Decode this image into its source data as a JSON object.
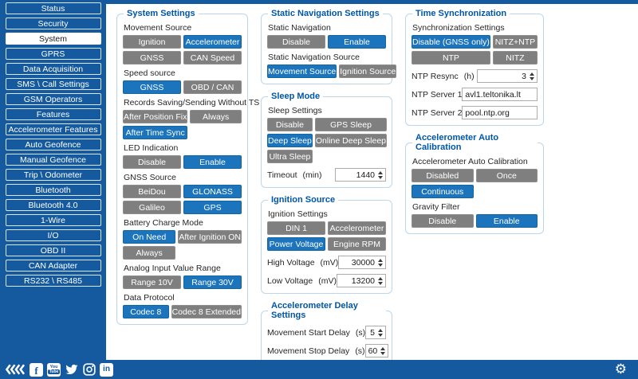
{
  "colors": {
    "sidebar_blue": "#155A9E",
    "selected_button_blue": "#1B74BC",
    "unselected_button_gray": "#7F7F7F",
    "panel_border_blue": "#BCD6EC",
    "panel_title_blue": "#0056A6"
  },
  "sidebar": {
    "items": [
      {
        "label": "Status",
        "selected": false
      },
      {
        "label": "Security",
        "selected": false
      },
      {
        "label": "System",
        "selected": true
      },
      {
        "label": "GPRS",
        "selected": false
      },
      {
        "label": "Data Acquisition",
        "selected": false
      },
      {
        "label": "SMS \\ Call Settings",
        "selected": false
      },
      {
        "label": "GSM Operators",
        "selected": false
      },
      {
        "label": "Features",
        "selected": false
      },
      {
        "label": "Accelerometer Features",
        "selected": false
      },
      {
        "label": "Auto Geofence",
        "selected": false
      },
      {
        "label": "Manual Geofence",
        "selected": false
      },
      {
        "label": "Trip \\ Odometer",
        "selected": false
      },
      {
        "label": "Bluetooth",
        "selected": false
      },
      {
        "label": "Bluetooth 4.0",
        "selected": false
      },
      {
        "label": "1-Wire",
        "selected": false
      },
      {
        "label": "I/O",
        "selected": false
      },
      {
        "label": "OBD II",
        "selected": false
      },
      {
        "label": "CAN Adapter",
        "selected": false
      },
      {
        "label": "RS232 \\ RS485",
        "selected": false
      }
    ]
  },
  "columns": [
    {
      "panels": [
        {
          "id": "system-settings",
          "title": "System Settings",
          "rows": [
            {
              "type": "label",
              "text": "Movement Source"
            },
            {
              "type": "options",
              "buttons": [
                {
                  "label": "Ignition",
                  "selected": false
                },
                {
                  "label": "Accelerometer",
                  "selected": true
                },
                {
                  "label": "GNSS",
                  "selected": false
                },
                {
                  "label": "CAN Speed",
                  "selected": false
                }
              ]
            },
            {
              "type": "label",
              "text": "Speed source"
            },
            {
              "type": "options",
              "buttons": [
                {
                  "label": "GNSS",
                  "selected": true
                },
                {
                  "label": "OBD / CAN",
                  "selected": false
                }
              ]
            },
            {
              "type": "label",
              "text": "Records Saving/Sending Without TS"
            },
            {
              "type": "options",
              "buttons": [
                {
                  "label": "After Position Fix",
                  "selected": false
                },
                {
                  "label": "Always",
                  "selected": false
                },
                {
                  "label": "After Time Sync",
                  "selected": true
                }
              ]
            },
            {
              "type": "label",
              "text": "LED Indication"
            },
            {
              "type": "options",
              "buttons": [
                {
                  "label": "Disable",
                  "selected": false
                },
                {
                  "label": "Enable",
                  "selected": true
                }
              ]
            },
            {
              "type": "label",
              "text": "GNSS Source"
            },
            {
              "type": "options",
              "buttons": [
                {
                  "label": "BeiDou",
                  "selected": false
                },
                {
                  "label": "GLONASS",
                  "selected": true
                },
                {
                  "label": "Galileo",
                  "selected": false
                },
                {
                  "label": "GPS",
                  "selected": true
                }
              ]
            },
            {
              "type": "label",
              "text": "Battery Charge Mode"
            },
            {
              "type": "options",
              "buttons": [
                {
                  "label": "On Need",
                  "selected": true
                },
                {
                  "label": "After Ignition ON",
                  "selected": false
                },
                {
                  "label": "Always",
                  "selected": false
                }
              ]
            },
            {
              "type": "label",
              "text": "Analog Input Value Range"
            },
            {
              "type": "options",
              "buttons": [
                {
                  "label": "Range 10V",
                  "selected": false
                },
                {
                  "label": "Range 30V",
                  "selected": true
                }
              ]
            },
            {
              "type": "label",
              "text": "Data Protocol"
            },
            {
              "type": "options",
              "buttons": [
                {
                  "label": "Codec 8",
                  "selected": true
                },
                {
                  "label": "Codec 8 Extended",
                  "selected": false
                }
              ]
            }
          ]
        }
      ]
    },
    {
      "panels": [
        {
          "id": "static-navigation-settings",
          "title": "Static Navigation Settings",
          "rows": [
            {
              "type": "label",
              "text": "Static Navigation"
            },
            {
              "type": "options",
              "buttons": [
                {
                  "label": "Disable",
                  "selected": false
                },
                {
                  "label": "Enable",
                  "selected": true
                }
              ]
            },
            {
              "type": "label",
              "text": "Static Navigation Source"
            },
            {
              "type": "options",
              "buttons": [
                {
                  "label": "Movement Source",
                  "selected": true
                },
                {
                  "label": "Ignition Source",
                  "selected": false
                }
              ]
            }
          ]
        },
        {
          "id": "sleep-mode",
          "title": "Sleep Mode",
          "rows": [
            {
              "type": "label",
              "text": "Sleep Settings"
            },
            {
              "type": "options",
              "buttons": [
                {
                  "label": "Disable",
                  "selected": false
                },
                {
                  "label": "GPS Sleep",
                  "selected": false
                },
                {
                  "label": "Deep Sleep",
                  "selected": true
                },
                {
                  "label": "Online Deep Sleep",
                  "selected": false
                },
                {
                  "label": "Ultra Sleep",
                  "selected": false
                }
              ]
            },
            {
              "type": "spinner",
              "label": "Timeout",
              "unit": "(min)",
              "value": "1440"
            }
          ]
        },
        {
          "id": "ignition-source",
          "title": "Ignition Source",
          "rows": [
            {
              "type": "label",
              "text": "Ignition Settings"
            },
            {
              "type": "options",
              "buttons": [
                {
                  "label": "DIN 1",
                  "selected": false
                },
                {
                  "label": "Accelerometer",
                  "selected": false
                },
                {
                  "label": "Power Voltage",
                  "selected": true
                },
                {
                  "label": "Engine RPM",
                  "selected": false
                }
              ]
            },
            {
              "type": "spinner",
              "label": "High Voltage",
              "unit": "(mV)",
              "value": "30000"
            },
            {
              "type": "spinner",
              "label": "Low Voltage",
              "unit": "(mV)",
              "value": "13200"
            }
          ]
        },
        {
          "id": "accelerometer-delay-settings",
          "title": "Accelerometer Delay Settings",
          "rows": [
            {
              "type": "spinner",
              "label": "Movement Start Delay",
              "unit": "(s)",
              "value": "5"
            },
            {
              "type": "spinner",
              "label": "Movement Stop Delay",
              "unit": "(s)",
              "value": "60"
            }
          ]
        }
      ]
    },
    {
      "panels": [
        {
          "id": "time-synchronization",
          "title": "Time Synchronization",
          "rows": [
            {
              "type": "label",
              "text": "Synchronization Settings"
            },
            {
              "type": "options",
              "buttons": [
                {
                  "label": "Disable (GNSS only)",
                  "selected": true
                },
                {
                  "label": "NITZ+NTP",
                  "selected": false
                },
                {
                  "label": "NTP",
                  "selected": false
                },
                {
                  "label": "NITZ",
                  "selected": false
                }
              ]
            },
            {
              "type": "spinner",
              "label": "NTP Resync",
              "unit": "(h)",
              "value": "3"
            },
            {
              "type": "text",
              "label": "NTP Server 1",
              "value": "avl1.teltonika.lt"
            },
            {
              "type": "text",
              "label": "NTP Server 2",
              "value": "pool.ntp.org"
            }
          ]
        },
        {
          "id": "accelerometer-auto-calibration",
          "title": "Accelerometer Auto Calibration",
          "rows": [
            {
              "type": "label",
              "text": "Accelerometer Auto Calibration"
            },
            {
              "type": "options",
              "buttons": [
                {
                  "label": "Disabled",
                  "selected": false
                },
                {
                  "label": "Once",
                  "selected": false
                },
                {
                  "label": "Continuous",
                  "selected": true
                }
              ]
            },
            {
              "type": "label",
              "text": "Gravity Filter"
            },
            {
              "type": "options",
              "buttons": [
                {
                  "label": "Disable",
                  "selected": false
                },
                {
                  "label": "Enable",
                  "selected": true
                }
              ]
            }
          ]
        }
      ]
    }
  ],
  "footer": {
    "icons": [
      {
        "name": "teltonika-logo-icon"
      },
      {
        "name": "facebook-icon",
        "glyph": "f"
      },
      {
        "name": "youtube-icon",
        "line1": "You",
        "line2": "Tube"
      },
      {
        "name": "twitter-icon"
      },
      {
        "name": "instagram-icon"
      },
      {
        "name": "linkedin-icon",
        "glyph": "in"
      }
    ],
    "gear_glyph": "⚙"
  }
}
